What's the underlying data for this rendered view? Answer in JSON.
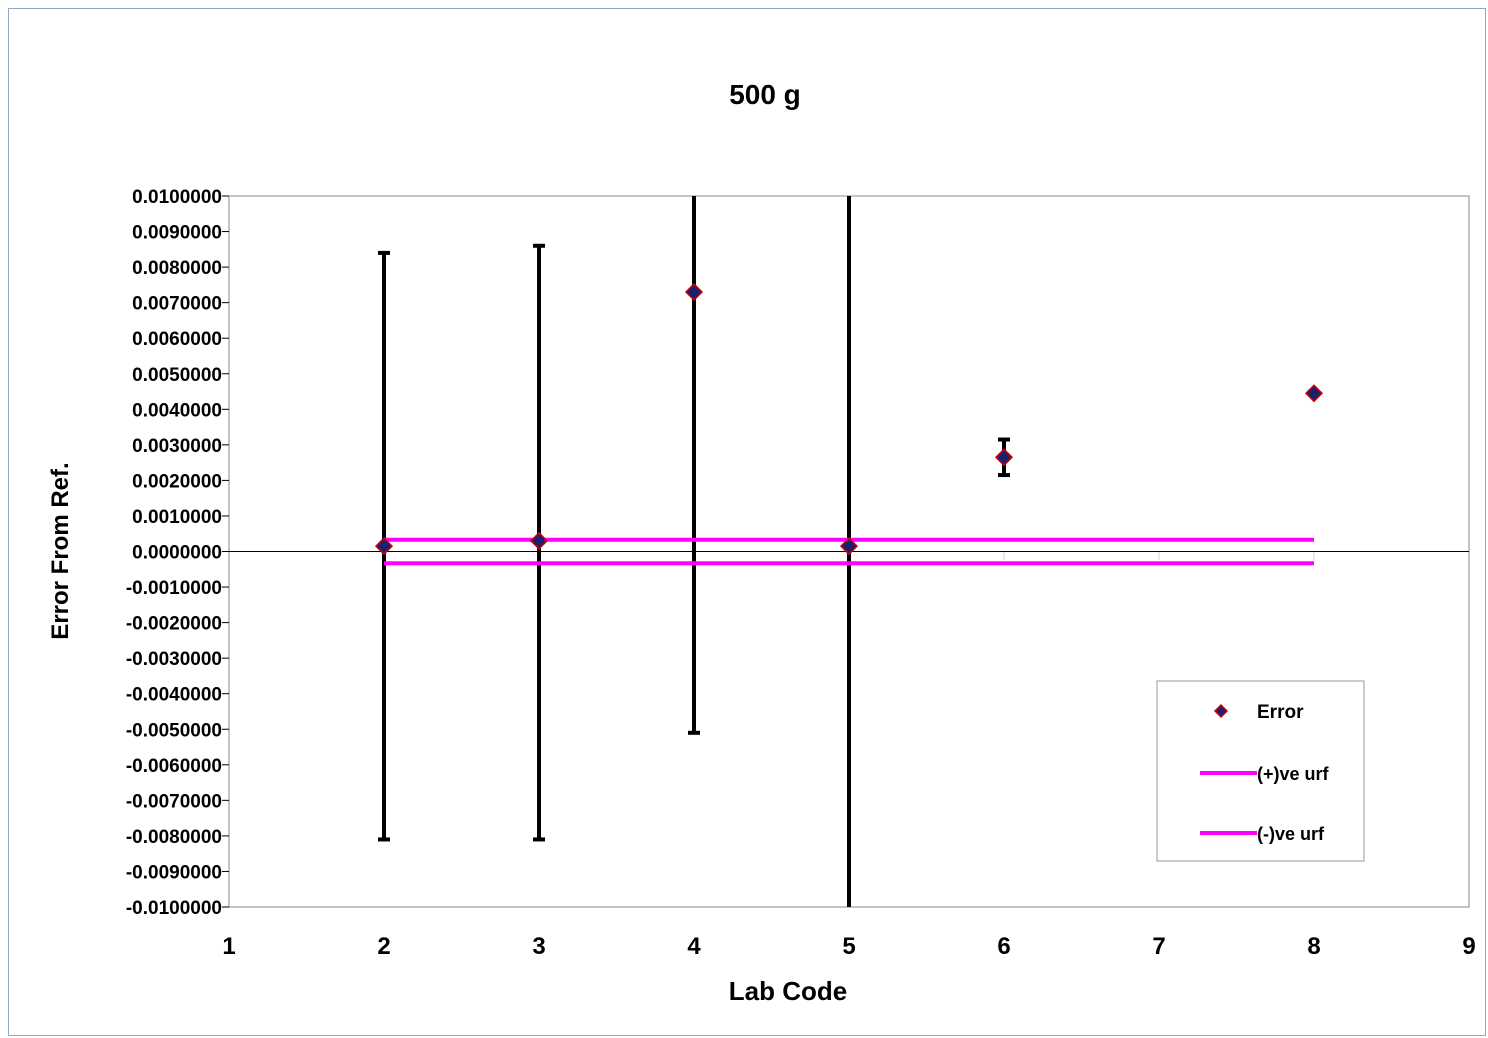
{
  "chart_data": {
    "type": "scatter",
    "title": "500 g",
    "xlabel": "Lab Code",
    "ylabel": "Error From Ref.",
    "xlim": [
      1,
      9
    ],
    "ylim": [
      -0.01,
      0.01
    ],
    "x_ticks": [
      1,
      2,
      3,
      4,
      5,
      6,
      7,
      8,
      9
    ],
    "x_tick_labels": [
      "1",
      "2",
      "3",
      "4",
      "5",
      "6",
      "7",
      "8",
      "9"
    ],
    "y_ticks": [
      0.01,
      0.009,
      0.008,
      0.007,
      0.006,
      0.005,
      0.004,
      0.003,
      0.002,
      0.001,
      0.0,
      -0.001,
      -0.002,
      -0.003,
      -0.004,
      -0.005,
      -0.006,
      -0.007,
      -0.008,
      -0.009,
      -0.01
    ],
    "y_tick_labels": [
      "0.0100000",
      "0.0090000",
      "0.0080000",
      "0.0070000",
      "0.0060000",
      "0.0050000",
      "0.0040000",
      "0.0030000",
      "0.0020000",
      "0.0010000",
      "0.0000000",
      "-0.0010000",
      "-0.0020000",
      "-0.0030000",
      "-0.0040000",
      "-0.0050000",
      "-0.0060000",
      "-0.0070000",
      "-0.0080000",
      "-0.0090000",
      "-0.0100000"
    ],
    "grid": false,
    "legend_position": "bottom-right",
    "series": [
      {
        "name": "Error",
        "kind": "points",
        "color": "#1a1f6e",
        "edge_color": "#cc0000",
        "x": [
          2,
          3,
          4,
          5,
          6,
          8
        ],
        "y": [
          0.00015,
          0.0003,
          0.0073,
          0.00015,
          0.00265,
          0.00445
        ],
        "error_low": [
          -0.0081,
          -0.0081,
          -0.0051,
          -0.0115,
          0.00215,
          0.00445
        ],
        "error_high": [
          0.0084,
          0.0086,
          0.0115,
          0.0115,
          0.00315,
          0.00445
        ]
      },
      {
        "name": "(+)ve urf",
        "kind": "line",
        "color": "#ff00ff",
        "x": [
          2,
          8
        ],
        "y": [
          0.00033,
          0.00033
        ]
      },
      {
        "name": "(-)ve urf",
        "kind": "line",
        "color": "#ff00ff",
        "x": [
          2,
          8
        ],
        "y": [
          -0.00033,
          -0.00033
        ]
      }
    ]
  }
}
